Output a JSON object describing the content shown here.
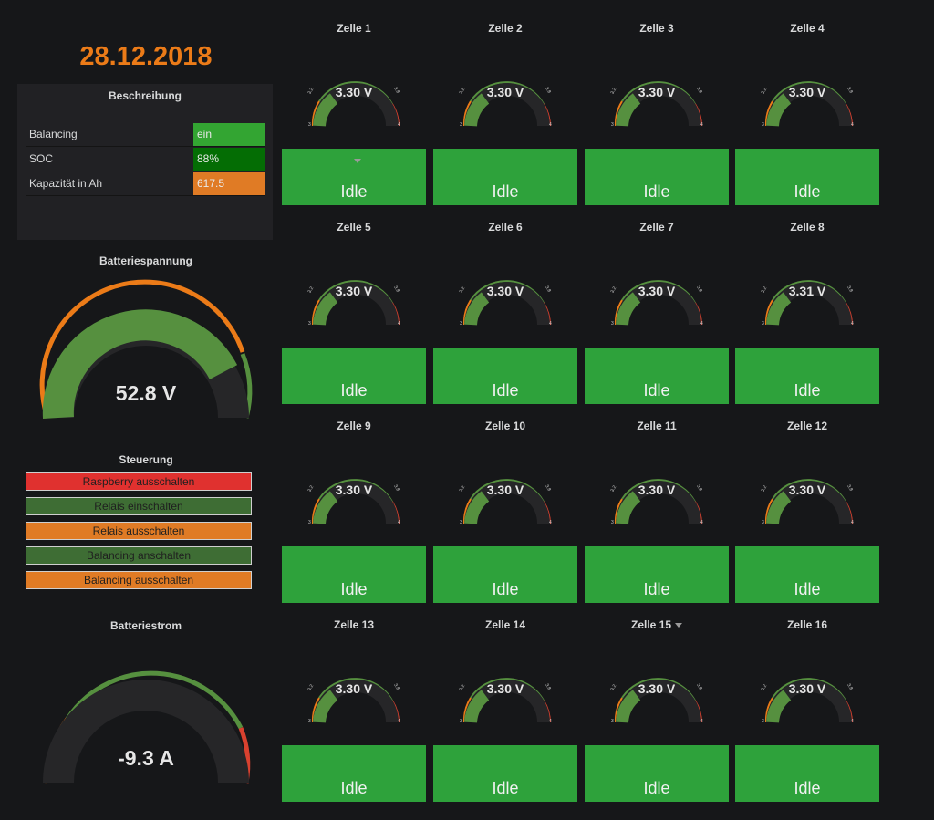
{
  "date": "28.12.2018",
  "description": {
    "title": "Beschreibung",
    "rows": [
      {
        "label": "Balancing",
        "value": "ein",
        "color": "#33a532"
      },
      {
        "label": "SOC",
        "value": "88%",
        "color": "#046d04"
      },
      {
        "label": "Kapazität in Ah",
        "value": "617.5",
        "color": "#e07b25"
      }
    ]
  },
  "battery_voltage": {
    "title": "Batteriespannung",
    "value": "52.8 V",
    "fill_fraction": 0.86
  },
  "control": {
    "title": "Steuerung",
    "buttons": [
      {
        "label": "Raspberry ausschalten",
        "color": "#e0312f"
      },
      {
        "label": "Relais einschalten",
        "color": "#3e6d34"
      },
      {
        "label": "Relais ausschalten",
        "color": "#e07b25"
      },
      {
        "label": "Balancing anschalten",
        "color": "#3e6d34"
      },
      {
        "label": "Balancing ausschalten",
        "color": "#e07b25"
      }
    ]
  },
  "battery_current": {
    "title": "Batteriestrom",
    "value": "-9.3 A"
  },
  "gauge_ticks": {
    "min": "3",
    "low": "3.2",
    "high": "3.8",
    "max": "4"
  },
  "cells": [
    {
      "title": "Zelle 1",
      "value": "3.30 V",
      "status": "Idle"
    },
    {
      "title": "Zelle 2",
      "value": "3.30 V",
      "status": "Idle"
    },
    {
      "title": "Zelle 3",
      "value": "3.30 V",
      "status": "Idle"
    },
    {
      "title": "Zelle 4",
      "value": "3.30 V",
      "status": "Idle"
    },
    {
      "title": "Zelle 5",
      "value": "3.30 V",
      "status": "Idle"
    },
    {
      "title": "Zelle 6",
      "value": "3.30 V",
      "status": "Idle"
    },
    {
      "title": "Zelle 7",
      "value": "3.30 V",
      "status": "Idle"
    },
    {
      "title": "Zelle 8",
      "value": "3.31 V",
      "status": "Idle"
    },
    {
      "title": "Zelle 9",
      "value": "3.30 V",
      "status": "Idle"
    },
    {
      "title": "Zelle 10",
      "value": "3.30 V",
      "status": "Idle"
    },
    {
      "title": "Zelle 11",
      "value": "3.30 V",
      "status": "Idle"
    },
    {
      "title": "Zelle 12",
      "value": "3.30 V",
      "status": "Idle"
    },
    {
      "title": "Zelle 13",
      "value": "3.30 V",
      "status": "Idle"
    },
    {
      "title": "Zelle 14",
      "value": "3.30 V",
      "status": "Idle"
    },
    {
      "title": "Zelle 15",
      "value": "3.30 V",
      "status": "Idle"
    },
    {
      "title": "Zelle 16",
      "value": "3.30 V",
      "status": "Idle"
    }
  ],
  "colors": {
    "green": "#2ea23b",
    "gauge_fill": "#56903f",
    "orange": "#eb7b18",
    "red": "#d9412f"
  }
}
